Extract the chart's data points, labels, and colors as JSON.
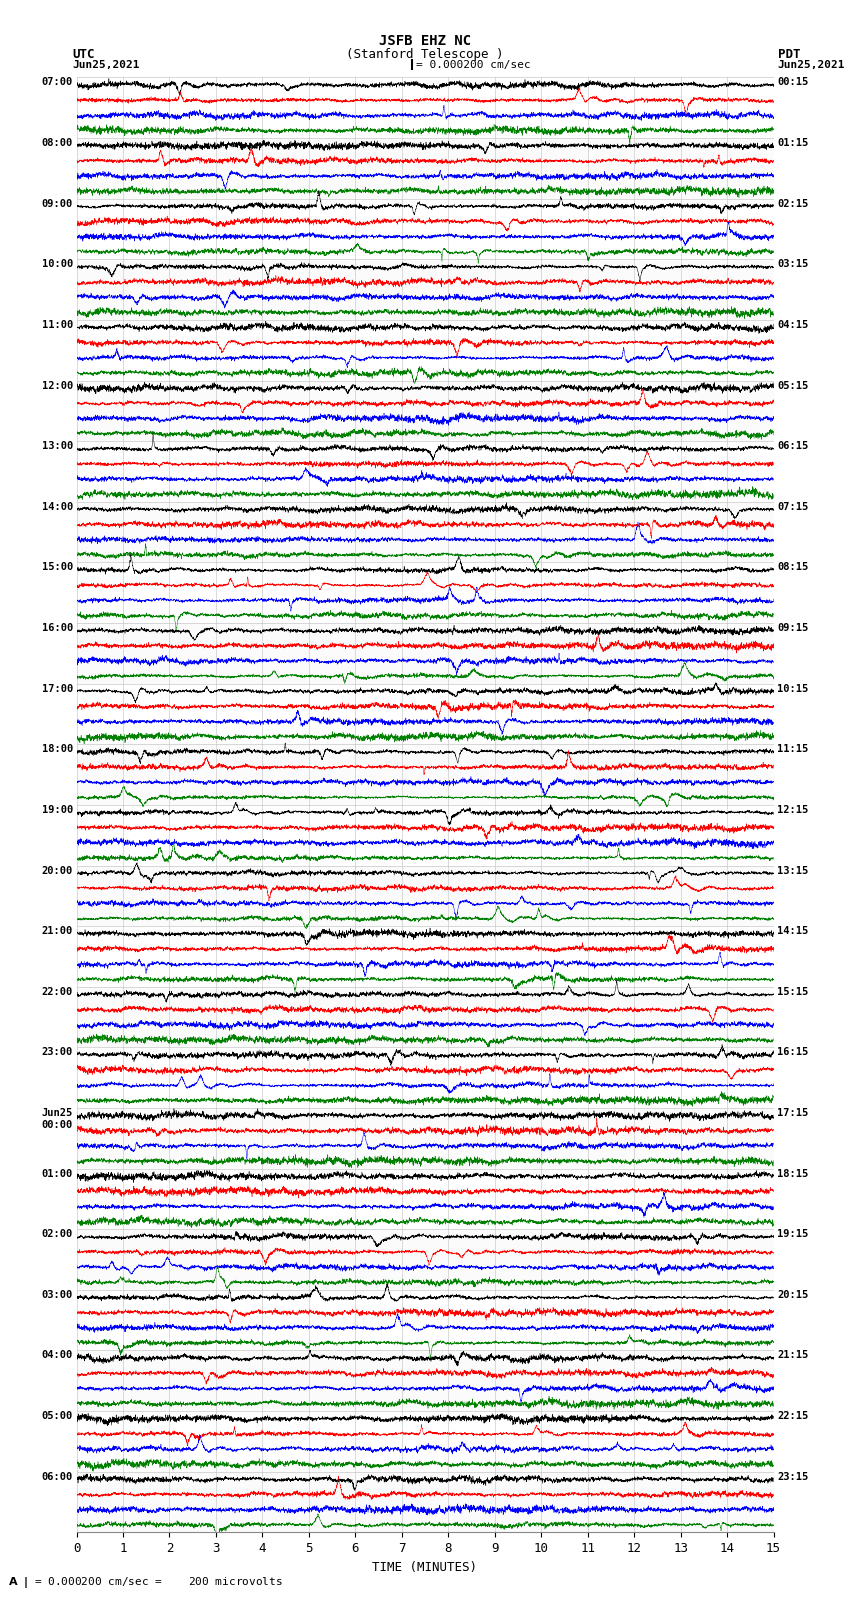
{
  "title_line1": "JSFB EHZ NC",
  "title_line2": "(Stanford Telescope )",
  "scale_text": "= 0.000200 cm/sec",
  "bottom_note": "= 0.000200 cm/sec =    200 microvolts",
  "utc_label": "UTC",
  "pdt_label": "PDT",
  "date_left": "Jun25,2021",
  "date_right": "Jun25,2021",
  "xlabel": "TIME (MINUTES)",
  "xmin": 0,
  "xmax": 15,
  "xticks": [
    0,
    1,
    2,
    3,
    4,
    5,
    6,
    7,
    8,
    9,
    10,
    11,
    12,
    13,
    14,
    15
  ],
  "trace_colors": [
    "black",
    "red",
    "blue",
    "green"
  ],
  "bg_color": "white",
  "n_rows": 96,
  "utc_times": [
    "07:00",
    "",
    "",
    "",
    "08:00",
    "",
    "",
    "",
    "09:00",
    "",
    "",
    "",
    "10:00",
    "",
    "",
    "",
    "11:00",
    "",
    "",
    "",
    "12:00",
    "",
    "",
    "",
    "13:00",
    "",
    "",
    "",
    "14:00",
    "",
    "",
    "",
    "15:00",
    "",
    "",
    "",
    "16:00",
    "",
    "",
    "",
    "17:00",
    "",
    "",
    "",
    "18:00",
    "",
    "",
    "",
    "19:00",
    "",
    "",
    "",
    "20:00",
    "",
    "",
    "",
    "21:00",
    "",
    "",
    "",
    "22:00",
    "",
    "",
    "",
    "23:00",
    "",
    "",
    "",
    "Jun25\n00:00",
    "",
    "",
    "",
    "01:00",
    "",
    "",
    "",
    "02:00",
    "",
    "",
    "",
    "03:00",
    "",
    "",
    "",
    "04:00",
    "",
    "",
    "",
    "05:00",
    "",
    "",
    "",
    "06:00",
    "",
    "",
    ""
  ],
  "pdt_times": [
    "00:15",
    "",
    "",
    "",
    "01:15",
    "",
    "",
    "",
    "02:15",
    "",
    "",
    "",
    "03:15",
    "",
    "",
    "",
    "04:15",
    "",
    "",
    "",
    "05:15",
    "",
    "",
    "",
    "06:15",
    "",
    "",
    "",
    "07:15",
    "",
    "",
    "",
    "08:15",
    "",
    "",
    "",
    "09:15",
    "",
    "",
    "",
    "10:15",
    "",
    "",
    "",
    "11:15",
    "",
    "",
    "",
    "12:15",
    "",
    "",
    "",
    "13:15",
    "",
    "",
    "",
    "14:15",
    "",
    "",
    "",
    "15:15",
    "",
    "",
    "",
    "16:15",
    "",
    "",
    "",
    "17:15",
    "",
    "",
    "",
    "18:15",
    "",
    "",
    "",
    "19:15",
    "",
    "",
    "",
    "20:15",
    "",
    "",
    "",
    "21:15",
    "",
    "",
    "",
    "22:15",
    "",
    "",
    "",
    "23:15",
    "",
    "",
    ""
  ],
  "figwidth": 8.5,
  "figheight": 16.13,
  "dpi": 100
}
